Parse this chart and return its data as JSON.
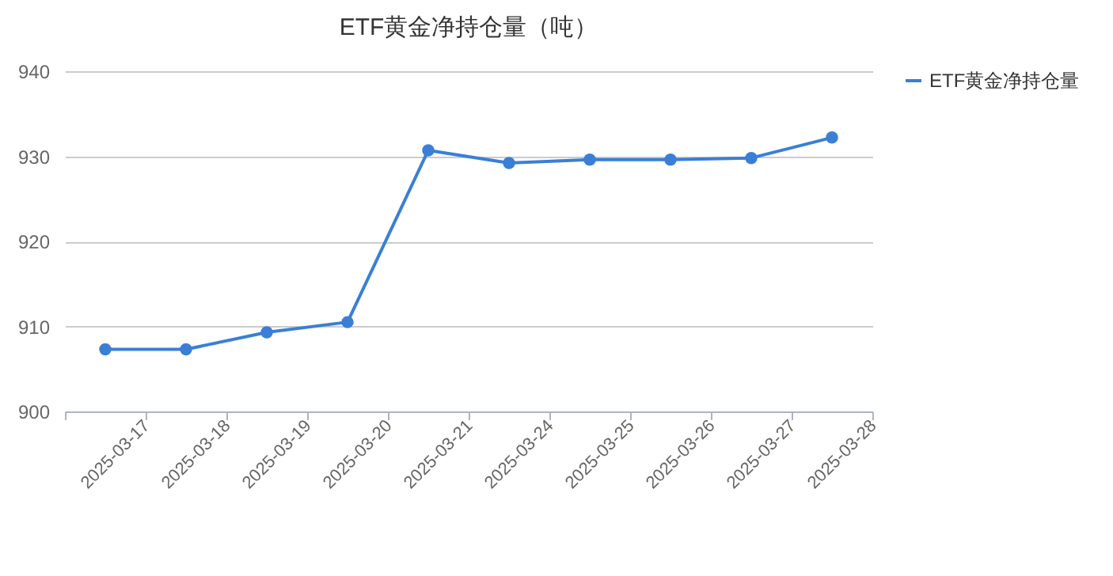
{
  "chart_data": {
    "type": "line",
    "title": "ETF黄金净持仓量（吨）",
    "categories": [
      "2025-03-17",
      "2025-03-18",
      "2025-03-19",
      "2025-03-20",
      "2025-03-21",
      "2025-03-24",
      "2025-03-25",
      "2025-03-26",
      "2025-03-27",
      "2025-03-28"
    ],
    "series": [
      {
        "name": "ETF黄金净持仓量",
        "color": "#3a7fd5",
        "values": [
          907.3,
          907.3,
          909.3,
          910.5,
          930.7,
          929.2,
          929.6,
          929.6,
          929.8,
          932.2
        ]
      }
    ],
    "ylim": [
      900,
      940
    ],
    "yticks": [
      900,
      910,
      920,
      930,
      940
    ],
    "grid": "y",
    "legend": "right",
    "marker": "circle",
    "line_style": "solid"
  }
}
